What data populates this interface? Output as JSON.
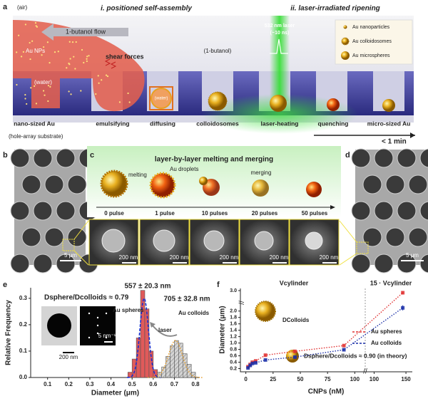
{
  "figure": {
    "panel_a": {
      "label": "a",
      "env": "(air)",
      "title_left": "i. positioned self-assembly",
      "title_right": "ii. laser-irradiated ripening",
      "flow": "1-butanol flow",
      "au_nps": "Au NPs",
      "water_1": "(water)",
      "shear": "shear forces",
      "butanol": "(1-butanol)",
      "water_2": "(water)",
      "laser": "532 nm laser",
      "laser_pulse": "(~10 ns)",
      "legend": [
        "Au nanoparticles",
        "Au colloidosomes",
        "Au microspheres"
      ],
      "steps": [
        "nano-sized Au",
        "emulsifying",
        "diffusing",
        "colloidosomes",
        "laser-heating",
        "quenching",
        "micro-sized Au"
      ],
      "substrate": "(hole-array substrate)",
      "time": "< 1 min"
    },
    "panel_b": {
      "label": "b",
      "scale_bar": "5 μm"
    },
    "panel_c": {
      "label": "c",
      "title": "layer-by-layer melting and merging",
      "melting": "melting",
      "droplets": "Au droplets",
      "merging": "merging",
      "pulses": [
        "0 pulse",
        "1 pulse",
        "10 pulses",
        "20 pulses",
        "50 pulses"
      ],
      "scale_bars": [
        "200 nm",
        "200 nm",
        "200 nm",
        "200 nm",
        "200 nm"
      ]
    },
    "panel_d": {
      "label": "d",
      "scale_bar": "5 μm"
    },
    "panel_e": {
      "label": "e"
    },
    "panel_f": {
      "label": "f"
    }
  },
  "chart_data": [
    {
      "type": "histogram",
      "xlabel": "Diameter (μm)",
      "ylabel": "Relative Frequency",
      "annotations": {
        "ratio": "Dsphere/Dcolloids ≈ 0.79",
        "sphere_size": "557 ± 20.3 nm",
        "colloid_size": "705 ± 32.8 nm",
        "laser": "laser",
        "inset_scale_1": "200 nm",
        "inset_scale_2": "5 nm⁻¹"
      },
      "xlim": [
        0.02,
        0.82
      ],
      "xticks": [
        0.1,
        0.2,
        0.3,
        0.4,
        0.5,
        0.6,
        0.7,
        0.8
      ],
      "ylim": [
        0,
        0.34
      ],
      "yticks": [
        {
          "value": 0,
          "label": "0.0"
        },
        0.1,
        0.2,
        0.3
      ],
      "series": [
        {
          "name": "Au spheres",
          "color": "#e05a5a",
          "bins": [
            0.48,
            0.5,
            0.52,
            0.54,
            0.56,
            0.58,
            0.6,
            0.62
          ],
          "values": [
            0.02,
            0.07,
            0.15,
            0.33,
            0.26,
            0.1,
            0.03
          ],
          "fit": {
            "mean": 0.557,
            "sd": 0.0203,
            "peak": 0.3,
            "color": "#1a2fd0"
          }
        },
        {
          "name": "Au colloids",
          "color": "#cfcfcf",
          "bins": [
            0.62,
            0.64,
            0.66,
            0.68,
            0.7,
            0.72,
            0.74,
            0.76,
            0.78,
            0.8
          ],
          "values": [
            0.02,
            0.04,
            0.08,
            0.12,
            0.14,
            0.13,
            0.09,
            0.05,
            0.02
          ],
          "fit": {
            "mean": 0.705,
            "sd": 0.0328,
            "peak": 0.14,
            "color": "#e8a030"
          }
        }
      ]
    },
    {
      "type": "scatter",
      "xlabel": "CNPs (nM)",
      "ylabel": "Diameter (μm)",
      "annotations": {
        "v1": "Vcylinder",
        "v15": "15 · Vcylinder",
        "d_colloids": "DColloids",
        "ratio": "Dsphere/Dcolloids ≈ 0.90   (in theory)"
      },
      "xlim": [
        [
          -5,
          105
        ],
        [
          95,
          160
        ]
      ],
      "xticks": [
        [
          0,
          25,
          50,
          75,
          100
        ],
        [
          100,
          150
        ]
      ],
      "ylim": [
        [
          0.1,
          2.15
        ],
        [
          2.6,
          3.1
        ]
      ],
      "yticks": [
        [
          0.2,
          0.4,
          0.6,
          0.8,
          {
            "value": 1,
            "label": "1.0"
          },
          1.2,
          1.4,
          1.6,
          1.8,
          {
            "value": 2,
            "label": "2.0"
          }
        ],
        [
          {
            "value": 3,
            "label": "3.0"
          }
        ]
      ],
      "x": [
        2,
        4,
        6,
        9,
        18,
        45,
        90,
        145
      ],
      "series": [
        {
          "name": "Au spheres",
          "color": "#e03030",
          "values": [
            0.26,
            0.33,
            0.4,
            0.44,
            0.62,
            0.74,
            0.92,
            2.9
          ],
          "errors": [
            0.02,
            0.02,
            0.02,
            0.02,
            0.03,
            0.03,
            0.03,
            0.08
          ]
        },
        {
          "name": "Au colloids",
          "color": "#1a2fa8",
          "values": [
            0.22,
            0.3,
            0.36,
            0.38,
            0.47,
            0.56,
            0.79,
            2.1
          ],
          "errors": [
            0.02,
            0.02,
            0.02,
            0.02,
            0.02,
            0.03,
            0.03,
            0.08
          ]
        }
      ]
    }
  ]
}
